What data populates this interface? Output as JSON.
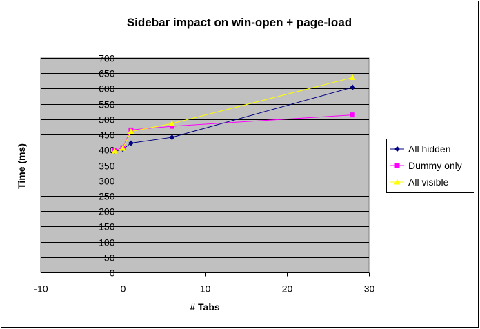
{
  "chart_data": {
    "type": "line",
    "title": "Sidebar impact on win-open + page-load",
    "xlabel": "# Tabs",
    "ylabel": "Time (ms)",
    "xlim": [
      -10,
      30
    ],
    "ylim": [
      0,
      700
    ],
    "x_ticks": [
      -10,
      0,
      10,
      20,
      30
    ],
    "y_ticks": [
      0,
      50,
      100,
      150,
      200,
      250,
      300,
      350,
      400,
      450,
      500,
      550,
      600,
      650,
      700
    ],
    "grid": "horizontal",
    "legend_position": "right",
    "series": [
      {
        "name": "All hidden",
        "color": "#000080",
        "marker": "diamond",
        "points": [
          [
            -1,
            395
          ],
          [
            0,
            402
          ],
          [
            1,
            422
          ],
          [
            6,
            441
          ],
          [
            28,
            604
          ]
        ]
      },
      {
        "name": "Dummy only",
        "color": "#ff00ff",
        "marker": "square",
        "points": [
          [
            -1,
            397
          ],
          [
            0,
            407
          ],
          [
            1,
            465
          ],
          [
            6,
            477
          ],
          [
            28,
            514
          ]
        ]
      },
      {
        "name": "All visible",
        "color": "#ffff00",
        "marker": "triangle",
        "points": [
          [
            -1,
            396
          ],
          [
            0,
            405
          ],
          [
            1,
            460
          ],
          [
            6,
            486
          ],
          [
            28,
            636
          ]
        ]
      }
    ]
  },
  "colors": {
    "plot_background": "#c0c0c0",
    "gridline": "#000000"
  }
}
